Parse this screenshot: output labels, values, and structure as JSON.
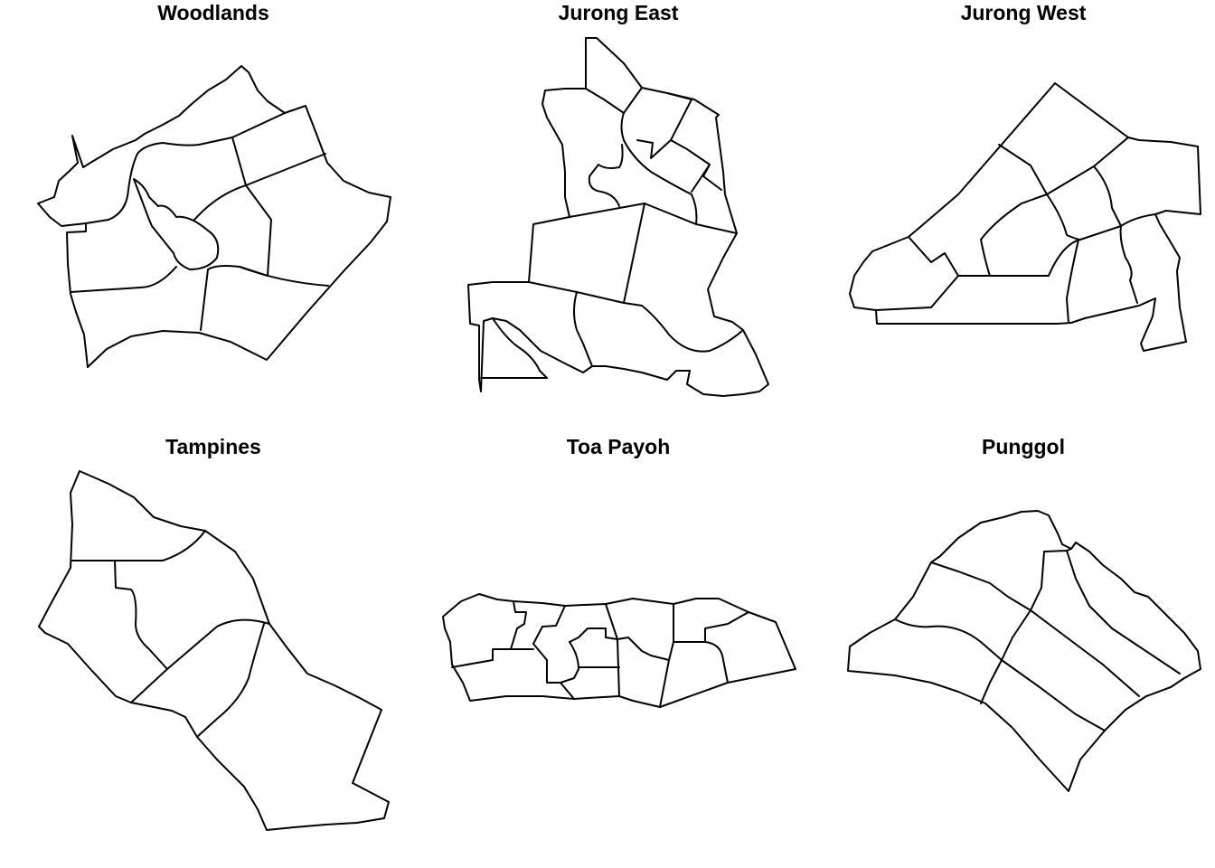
{
  "panels": [
    {
      "key": "woodlands",
      "title": "Woodlands"
    },
    {
      "key": "jurong_east",
      "title": "Jurong East"
    },
    {
      "key": "jurong_west",
      "title": "Jurong West"
    },
    {
      "key": "tampines",
      "title": "Tampines"
    },
    {
      "key": "toa_payoh",
      "title": "Toa Payoh"
    },
    {
      "key": "punggol",
      "title": "Punggol"
    }
  ]
}
